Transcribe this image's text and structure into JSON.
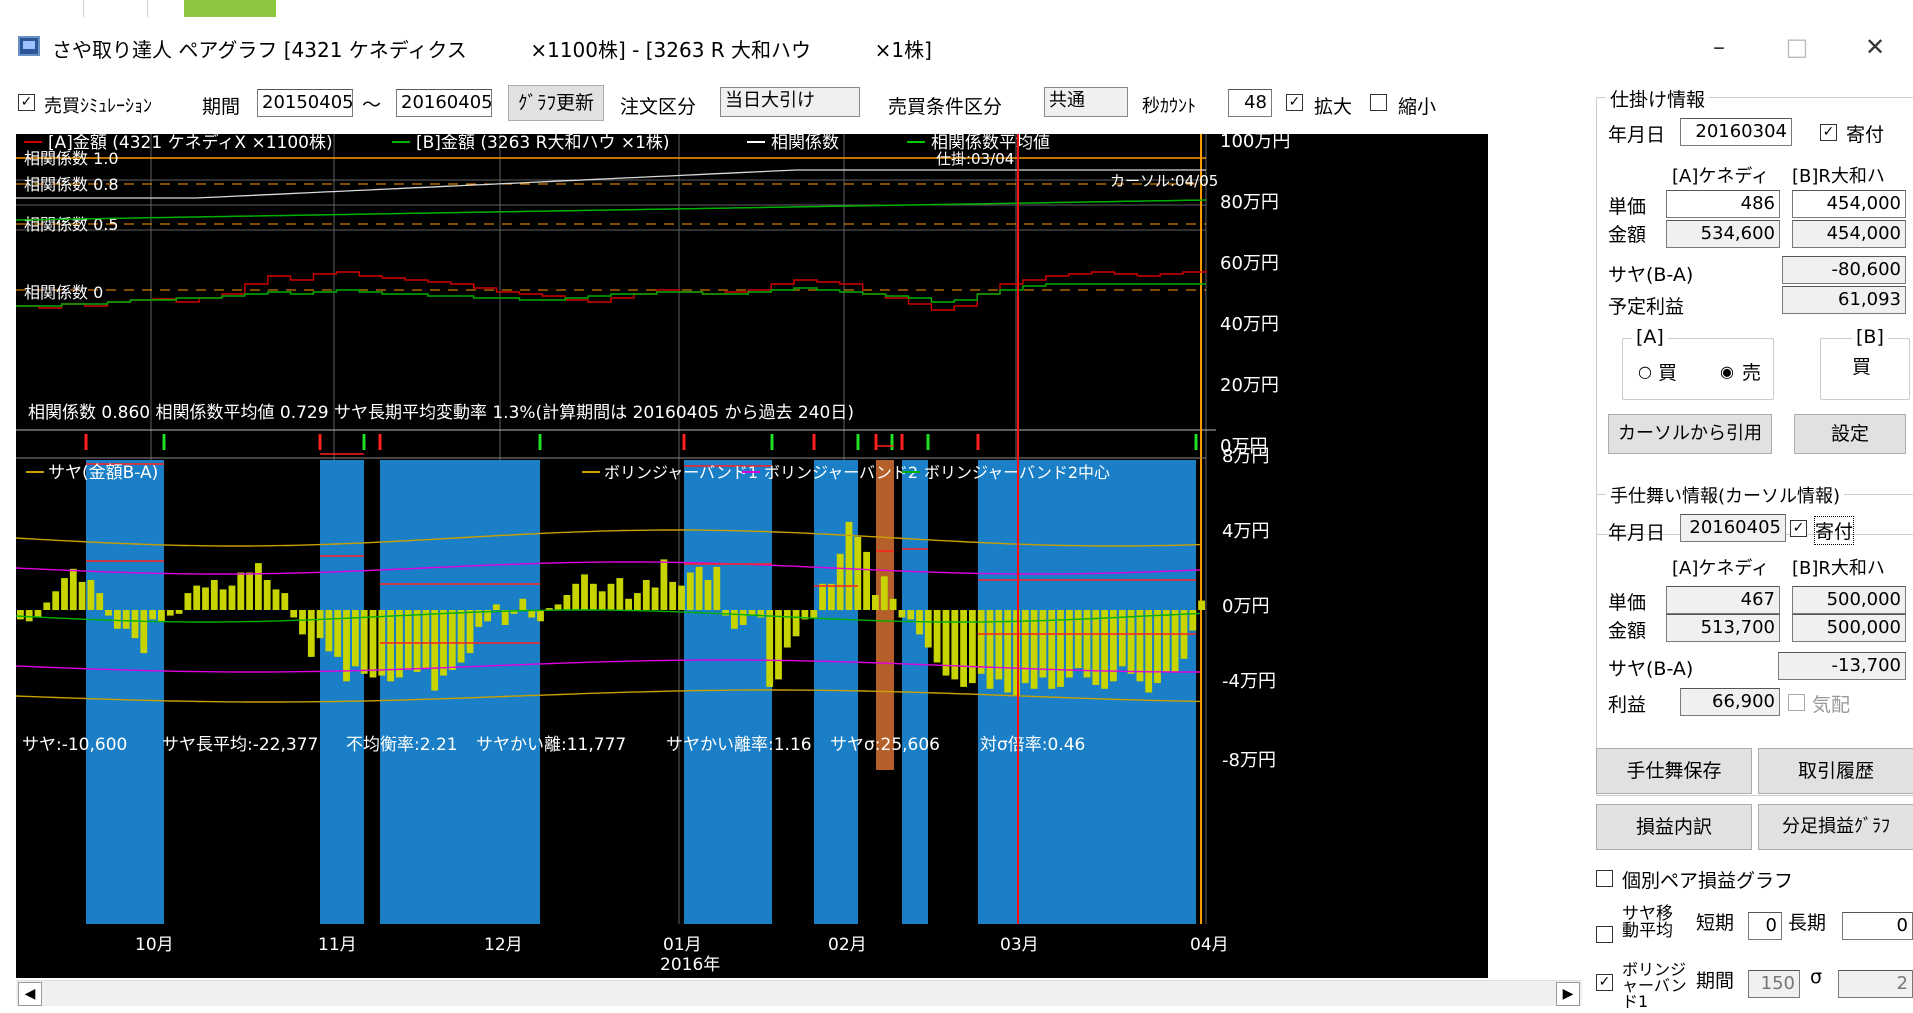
{
  "window": {
    "title": "さや取り達人 ペアグラフ [4321 ケネディクス          ×1100株] - [3263 R 大和ハウ          ×1株]",
    "minimize": "–",
    "maximize": "□",
    "close": "✕"
  },
  "toolbar": {
    "sim_label": "売買ｼﾐｭﾚｰｼｮﾝ",
    "sim_checked": "✓",
    "period_label": "期間",
    "period_from": "20150405",
    "tilde": "～",
    "period_to": "20160405",
    "refresh_button": "ｸﾞﾗﾌ更新",
    "order_label": "注文区分",
    "order_value": "当日大引け",
    "cond_label": "売買条件区分",
    "cond_value": "共通",
    "sec_label": "秒ｶｳﾝﾄ",
    "sec_value": "48",
    "zoom_in_label": "拡大",
    "zoom_in_checked": "✓",
    "zoom_out_label": "縮小",
    "zoom_out_checked": ""
  },
  "chart": {
    "legend": [
      {
        "text": "[A]金額 (4321 ケネディX    ×1100株)",
        "color": "#d00000"
      },
      {
        "text": "[B]金額 (3263 R大和ハウ    ×1株)",
        "color": "#00b000"
      },
      {
        "text": "相関係数",
        "color": "#ffffff"
      },
      {
        "text": "相関係数平均値",
        "color": "#00cc00"
      }
    ],
    "corr_labels": [
      "相関係数 1.0",
      "相関係数 0.8",
      "相関係数 0.5",
      "相関係数 0"
    ],
    "shikake_label": "仕掛:03/04",
    "cursor_label": "カーソル:04/05",
    "right_axis_top": [
      "100万円",
      "80万円",
      "60万円",
      "40万円",
      "20万円",
      "0万円"
    ],
    "right_axis_bottom": [
      "8万円",
      "4万円",
      "0万円",
      "-4万円",
      "-8万円"
    ],
    "stats": "相関係数 0.860 相関係数平均値 0.729 サヤ長期平均変動率 1.3%(計算期間は 20160405 から過去 240日)",
    "legend2": [
      {
        "text": "サヤ(金額B-A)",
        "color": "#c8a000"
      },
      {
        "text": "ボリンジャーバンド1",
        "color": "#c8a000"
      },
      {
        "text": "ボリンジャーバンド2",
        "color": "#e000e0"
      },
      {
        "text": "ボリンジャーバンド2中心",
        "color": "#00b000"
      }
    ],
    "bottom_stats": [
      "サヤ:-10,600",
      "サヤ長平均:-22,377",
      "不均衡率:2.21",
      "サヤかい離:11,777",
      "サヤかい離率:1.16",
      "サヤσ:25,606",
      "対σ倍率:0.46"
    ],
    "months": [
      "10月",
      "11月",
      "12月",
      "01月",
      "02月",
      "03月",
      "04月"
    ],
    "year_label": "2016年",
    "colors": {
      "band": "#1a7fc6",
      "band_orange": "#b5602a",
      "bar": "#c8d400",
      "a_line": "#d00000",
      "b_line": "#00b000",
      "corr": "#d8d8d8",
      "grid": "#606060",
      "guide": "#ff9900"
    }
  },
  "chart_data": {
    "type": "bar",
    "x_range": [
      "2015-09",
      "2016-04"
    ],
    "top_axis_range_manyen": [
      0,
      100
    ],
    "bottom_axis_range_manyen": [
      -8,
      8
    ],
    "saya_values_manyen": [
      -0.5,
      -0.6,
      -0.4,
      0.4,
      1,
      1.7,
      2.2,
      1.5,
      1.6,
      0.9,
      -0.3,
      -1,
      -1,
      -1.5,
      -2.3,
      -0.5,
      -0.6,
      -0.3,
      -0.2,
      0.9,
      1.3,
      1.2,
      1.6,
      1.1,
      1.3,
      2,
      2,
      2.5,
      1.6,
      1.1,
      0.9,
      -0.4,
      -1.3,
      -2.5,
      -1.5,
      -2.2,
      -2.5,
      -3.8,
      -3,
      -3.4,
      -3.6,
      -3.5,
      -3.8,
      -3.6,
      -3.2,
      -3.3,
      -3.1,
      -4.3,
      -3.5,
      -3.2,
      -2.8,
      -2.3,
      -0.9,
      -0.6,
      0.3,
      -0.8,
      -0.2,
      0.6,
      -0.4,
      -0.6,
      0.1,
      0.3,
      0.8,
      1.4,
      1.9,
      1.4,
      1,
      1.4,
      1.7,
      0.6,
      0.9,
      1.6,
      1.2,
      2.7,
      1.5,
      1.3,
      2,
      2.3,
      1.6,
      2.3,
      -0.3,
      -1,
      -0.8,
      -0.3,
      -0.4,
      -4.1,
      -3.7,
      -2,
      -1.4,
      -0.5,
      -0.4,
      1.4,
      1.4,
      3,
      4.7,
      3.9,
      3.1,
      0.8,
      1.8,
      0.6,
      -0.4,
      -0.5,
      -1.3,
      -2,
      -2.8,
      -3.5,
      -3.7,
      -4.1,
      -3.9,
      -3.4,
      -4.2,
      -3.7,
      -4.4,
      -4.6,
      -3.9,
      -4.2,
      -3.6,
      -4.2,
      -4.1,
      -3.6,
      -3.1,
      -3.6,
      -4,
      -4.2,
      -3.8,
      -3,
      -3.4,
      -3.8,
      -4.4,
      -3.9,
      -3.3,
      -3.3,
      -2.6,
      -1.1,
      0.5
    ],
    "series": [
      {
        "name": "サヤ(金額B-A)",
        "values_ref": "saya_values_manyen"
      }
    ],
    "xlabel": "",
    "ylabel": "",
    "title": ""
  },
  "panel": {
    "shikake": {
      "title": "仕掛け情報",
      "date_label": "年月日",
      "date_value": "20160304",
      "yoritsuki_label": "寄付",
      "yoritsuki_checked": "✓",
      "col_a": "[A]ケネディ",
      "col_b": "[B]R大和ハ",
      "unit_label": "単価",
      "unit_a": "486",
      "unit_b": "454,000",
      "amount_label": "金額",
      "amount_a": "534,600",
      "amount_b": "454,000",
      "saya_label": "サヤ(B-A)",
      "saya_value": "-80,600",
      "profit_label": "予定利益",
      "profit_value": "61,093",
      "a_label": "[A]",
      "buy_label": "買",
      "sell_label": "売",
      "b_label": "[B]",
      "b_action": "買",
      "from_cursor_button": "カーソルから引用",
      "set_button": "設定"
    },
    "shimai": {
      "title": "手仕舞い情報(カーソル情報)",
      "date_label": "年月日",
      "date_value": "20160405",
      "yoritsuki_label": "寄付",
      "yoritsuki_checked": "✓",
      "col_a": "[A]ケネディ",
      "col_b": "[B]R大和ハ",
      "unit_label": "単価",
      "unit_a": "467",
      "unit_b": "500,000",
      "amount_label": "金額",
      "amount_a": "513,700",
      "amount_b": "500,000",
      "saya_label": "サヤ(B-A)",
      "saya_value": "-13,700",
      "profit_label": "利益",
      "profit_value": "66,900",
      "haito_label": "気配"
    },
    "buttons": {
      "save": "手仕舞保存",
      "history": "取引履歴",
      "breakdown": "損益内訳",
      "bunashi": "分足損益ｸﾞﾗﾌ"
    },
    "pair_graph_label": "個別ペア損益グラフ",
    "ma_label": "サヤ移動平均",
    "short_label": "短期",
    "short_value": "0",
    "long_label": "長期",
    "long_value": "0",
    "boll_label": "ボリンジャーバンド1",
    "boll_period_label": "期間",
    "boll_period_value": "150",
    "sigma_label": "σ",
    "sigma_value": "2"
  }
}
